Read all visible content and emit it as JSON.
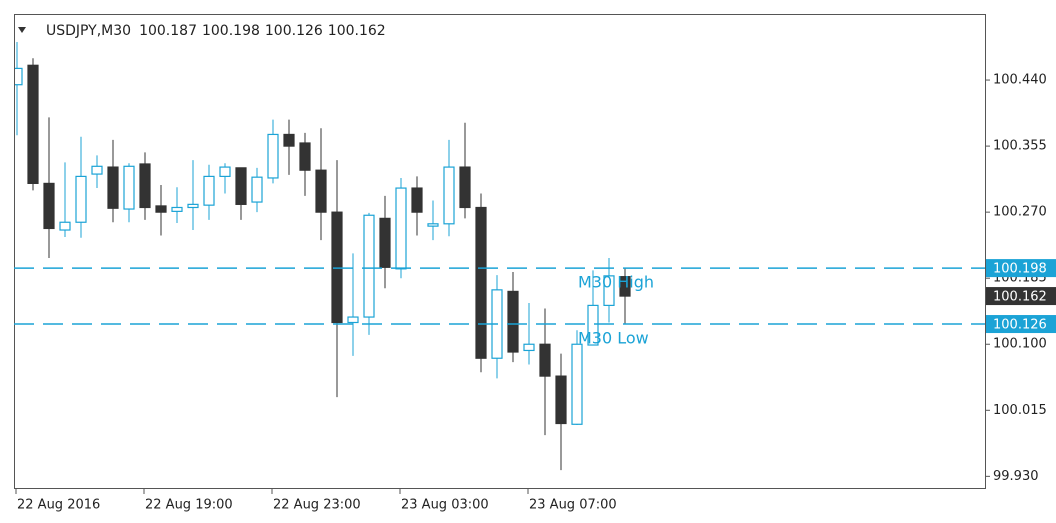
{
  "chart_data": {
    "type": "candlestick",
    "title": "USDJPY,M30",
    "categories": [
      "22 Aug 2016",
      null,
      null,
      null,
      null,
      null,
      null,
      null,
      "22 Aug 19:00",
      null,
      null,
      null,
      null,
      null,
      null,
      null,
      "22 Aug 23:00",
      null,
      null,
      null,
      null,
      null,
      null,
      null,
      "23 Aug 03:00",
      null,
      null,
      null,
      null,
      null,
      null,
      null,
      "23 Aug 07:00",
      null,
      null,
      null,
      null,
      null,
      null
    ],
    "open": [
      100.434,
      100.459,
      100.307,
      100.247,
      100.257,
      100.319,
      100.328,
      100.274,
      100.332,
      100.278,
      100.271,
      100.276,
      100.279,
      100.316,
      100.327,
      100.283,
      100.314,
      100.37,
      100.359,
      100.324,
      100.27,
      100.128,
      100.135,
      100.262,
      100.197,
      100.301,
      100.252,
      100.255,
      100.328,
      100.276,
      100.082,
      100.168,
      100.092,
      100.1,
      100.059,
      99.997,
      100.099,
      100.15,
      100.187
    ],
    "high": [
      100.489,
      100.468,
      100.392,
      100.334,
      100.367,
      100.343,
      100.363,
      100.333,
      100.347,
      100.305,
      100.302,
      100.337,
      100.331,
      100.333,
      100.327,
      100.327,
      100.389,
      100.389,
      100.372,
      100.378,
      100.337,
      100.217,
      100.269,
      100.291,
      100.314,
      100.316,
      100.285,
      100.363,
      100.385,
      100.294,
      100.189,
      100.193,
      100.153,
      100.146,
      100.088,
      100.118,
      100.195,
      100.211,
      100.198
    ],
    "low": [
      100.369,
      100.298,
      100.211,
      100.238,
      100.237,
      100.301,
      100.257,
      100.257,
      100.26,
      100.24,
      100.256,
      100.247,
      100.26,
      100.294,
      100.26,
      100.27,
      100.307,
      100.318,
      100.291,
      100.234,
      100.032,
      100.085,
      100.112,
      100.172,
      100.185,
      100.24,
      100.234,
      100.239,
      100.262,
      100.064,
      100.056,
      100.077,
      100.074,
      99.983,
      99.938,
      99.996,
      100.099,
      100.128,
      100.126
    ],
    "close": [
      100.455,
      100.307,
      100.249,
      100.257,
      100.316,
      100.329,
      100.275,
      100.329,
      100.276,
      100.27,
      100.276,
      100.28,
      100.316,
      100.328,
      100.28,
      100.315,
      100.37,
      100.355,
      100.324,
      100.27,
      100.128,
      100.135,
      100.266,
      100.199,
      100.301,
      100.27,
      100.255,
      100.328,
      100.276,
      100.082,
      100.17,
      100.09,
      100.1,
      100.059,
      99.998,
      100.1,
      100.15,
      100.188,
      100.162
    ],
    "up_color": "#1ba3d6",
    "down_color": "#333333",
    "ylim": [
      99.915,
      100.525
    ],
    "yticks": [
      {
        "value": 99.93,
        "label": "99.930"
      },
      100.015,
      {
        "value": 100.1,
        "label": "100.100"
      },
      100.185,
      {
        "value": 100.27,
        "label": "100.270"
      },
      100.355,
      {
        "value": 100.44,
        "label": "100.440"
      }
    ],
    "levels": [
      {
        "name": "M30 High",
        "value": 100.198
      },
      {
        "name": "M30 Low",
        "value": 100.126
      }
    ],
    "level_color": "#1ba3d6"
  }
}
